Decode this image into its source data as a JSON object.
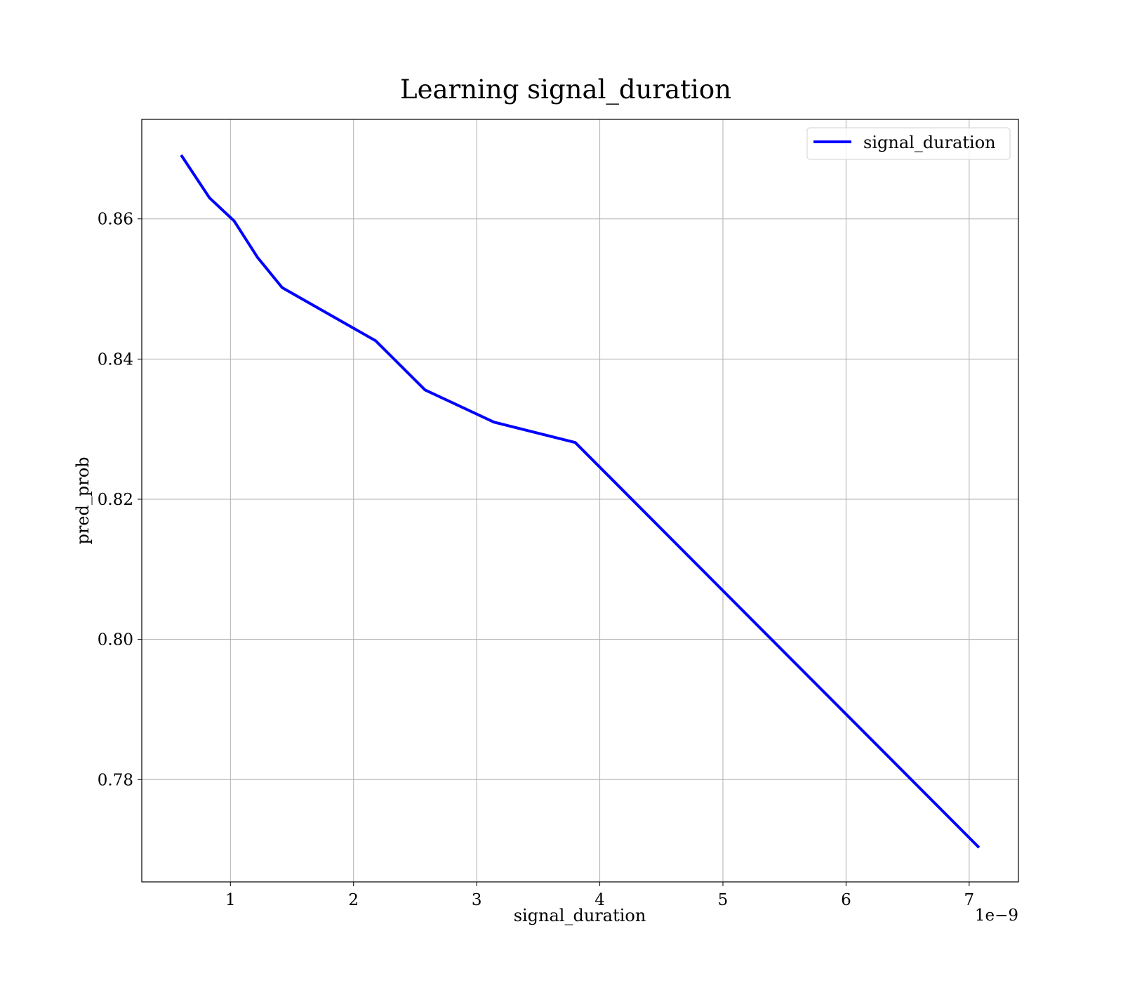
{
  "chart_data": {
    "type": "line",
    "title": "Learning signal_duration",
    "xlabel": "signal_duration",
    "ylabel": "pred_prob",
    "x_offset_text": "1e−9",
    "x_scale": 1e-09,
    "xlim": [
      2.8e-10,
      7.4e-09
    ],
    "ylim": [
      0.7654,
      0.8742
    ],
    "x_ticks": [
      1e-09,
      2e-09,
      3e-09,
      4e-09,
      5e-09,
      6e-09,
      7e-09
    ],
    "x_tick_labels": [
      "1",
      "2",
      "3",
      "4",
      "5",
      "6",
      "7"
    ],
    "y_ticks": [
      0.78,
      0.8,
      0.82,
      0.84,
      0.86
    ],
    "y_tick_labels": [
      "0.78",
      "0.80",
      "0.82",
      "0.84",
      "0.86"
    ],
    "grid": true,
    "legend_position": "top-right",
    "series": [
      {
        "name": "signal_duration",
        "color": "#0000ff",
        "x": [
          6e-10,
          8.3e-10,
          1.03e-09,
          1.22e-09,
          1.42e-09,
          2.18e-09,
          2.58e-09,
          3.14e-09,
          3.8e-09,
          7.08e-09
        ],
        "y": [
          0.8691,
          0.863,
          0.8597,
          0.8545,
          0.8502,
          0.8426,
          0.8356,
          0.831,
          0.8281,
          0.7703
        ]
      }
    ]
  }
}
